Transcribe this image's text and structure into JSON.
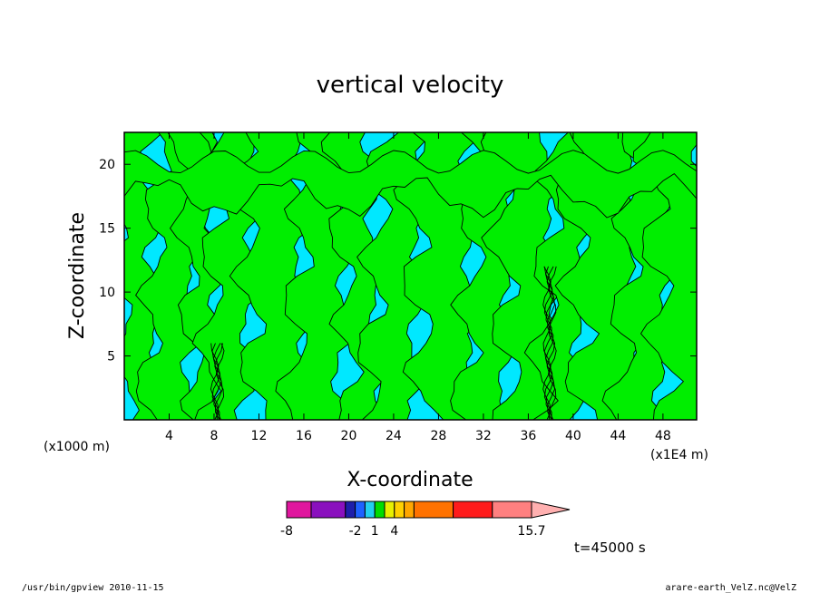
{
  "chart_data": {
    "type": "heatmap",
    "title": "vertical velocity",
    "xlabel": "X-coordinate",
    "ylabel": "Z-coordinate",
    "x_unit_label": "(x1000 m)",
    "x_scale_label": "(x1E4 m)",
    "xlim": [
      0,
      51
    ],
    "ylim": [
      0,
      22.5
    ],
    "x_ticks": [
      4,
      8,
      12,
      16,
      20,
      24,
      28,
      32,
      36,
      40,
      44,
      48
    ],
    "x_tick_labels": [
      "4",
      "8",
      "12",
      "16",
      "20",
      "24",
      "28",
      "32",
      "36",
      "40",
      "44",
      "48"
    ],
    "y_ticks": [
      5,
      10,
      15,
      20
    ],
    "y_tick_labels": [
      "5",
      "10",
      "15",
      "20"
    ],
    "colorbar": {
      "labels": [
        {
          "text": "-8",
          "index": 0
        },
        {
          "text": "-2",
          "index": 3
        },
        {
          "text": "1",
          "index": 5
        },
        {
          "text": "4",
          "index": 7
        },
        {
          "text": "15.7",
          "index": 12
        }
      ],
      "colors": [
        "#e0169e",
        "#8a10be",
        "#1e1eaa",
        "#1e62ff",
        "#22cff0",
        "#00dd00",
        "#e8f000",
        "#ffd000",
        "#ffa600",
        "#ff7200",
        "#ff1c1c",
        "#ff8080",
        "#ffb0b0"
      ]
    },
    "colors": {
      "up": "#00ee00",
      "down": "#00e8ff"
    },
    "notes_time": "t=45000 s",
    "footer_left": "/usr/bin/gpview  2010-11-15",
    "footer_right": "arare-earth_VelZ.nc@VelZ"
  }
}
